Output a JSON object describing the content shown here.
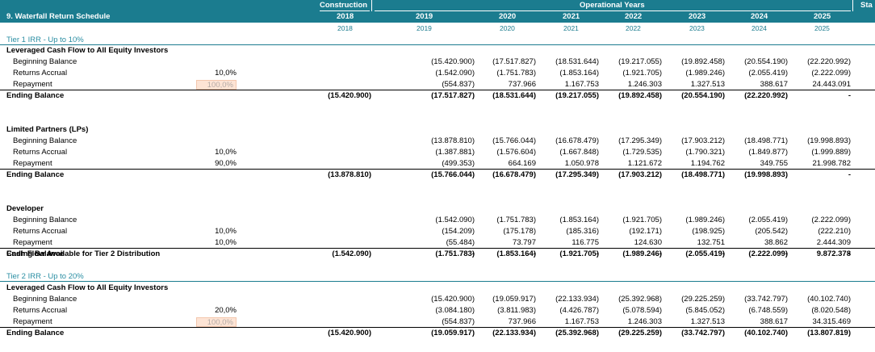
{
  "header": {
    "title": "9. Waterfall Return Schedule",
    "construction_label": "Construction",
    "operational_label": "Operational Years",
    "cut_label": "Sta",
    "years": [
      "2018",
      "2019",
      "2020",
      "2021",
      "2022",
      "2023",
      "2024",
      "2025"
    ],
    "sub_years": [
      "2018",
      "2019",
      "2020",
      "2021",
      "2022",
      "2023",
      "2024",
      "2025"
    ]
  },
  "tier1": {
    "title": "Tier 1 IRR - Up to 10%",
    "groups": [
      {
        "name": "Leveraged Cash Flow to All Equity Investors",
        "rows": [
          {
            "label": "Beginning Balance",
            "pct": "",
            "values": [
              "",
              "(15.420.900)",
              "(17.517.827)",
              "(18.531.644)",
              "(19.217.055)",
              "(19.892.458)",
              "(20.554.190)",
              "(22.220.992)"
            ]
          },
          {
            "label": "Returns Accrual",
            "pct": "10,0%",
            "values": [
              "",
              "(1.542.090)",
              "(1.751.783)",
              "(1.853.164)",
              "(1.921.705)",
              "(1.989.246)",
              "(2.055.419)",
              "(2.222.099)"
            ]
          },
          {
            "label": "Repayment",
            "pct": "100,0%",
            "highlight": true,
            "values": [
              "",
              "(554.837)",
              "737.966",
              "1.167.753",
              "1.246.303",
              "1.327.513",
              "388.617",
              "24.443.091"
            ]
          }
        ],
        "ending": {
          "label": "Ending Balance",
          "values": [
            "(15.420.900)",
            "(17.517.827)",
            "(18.531.644)",
            "(19.217.055)",
            "(19.892.458)",
            "(20.554.190)",
            "(22.220.992)",
            "-"
          ]
        }
      },
      {
        "name": "Limited Partners (LPs)",
        "rows": [
          {
            "label": "Beginning Balance",
            "pct": "",
            "values": [
              "",
              "(13.878.810)",
              "(15.766.044)",
              "(16.678.479)",
              "(17.295.349)",
              "(17.903.212)",
              "(18.498.771)",
              "(19.998.893)"
            ]
          },
          {
            "label": "Returns Accrual",
            "pct": "10,0%",
            "values": [
              "",
              "(1.387.881)",
              "(1.576.604)",
              "(1.667.848)",
              "(1.729.535)",
              "(1.790.321)",
              "(1.849.877)",
              "(1.999.889)"
            ]
          },
          {
            "label": "Repayment",
            "pct": "90,0%",
            "values": [
              "",
              "(499.353)",
              "664.169",
              "1.050.978",
              "1.121.672",
              "1.194.762",
              "349.755",
              "21.998.782"
            ]
          }
        ],
        "ending": {
          "label": "Ending Balance",
          "values": [
            "(13.878.810)",
            "(15.766.044)",
            "(16.678.479)",
            "(17.295.349)",
            "(17.903.212)",
            "(18.498.771)",
            "(19.998.893)",
            "-"
          ]
        }
      },
      {
        "name": "Developer",
        "rows": [
          {
            "label": "Beginning Balance",
            "pct": "",
            "values": [
              "",
              "(1.542.090)",
              "(1.751.783)",
              "(1.853.164)",
              "(1.921.705)",
              "(1.989.246)",
              "(2.055.419)",
              "(2.222.099)"
            ]
          },
          {
            "label": "Returns Accrual",
            "pct": "10,0%",
            "values": [
              "",
              "(154.209)",
              "(175.178)",
              "(185.316)",
              "(192.171)",
              "(198.925)",
              "(205.542)",
              "(222.210)"
            ]
          },
          {
            "label": "Repayment",
            "pct": "10,0%",
            "values": [
              "",
              "(55.484)",
              "73.797",
              "116.775",
              "124.630",
              "132.751",
              "38.862",
              "2.444.309"
            ]
          }
        ],
        "ending": {
          "label": "Ending Balance",
          "values": [
            "(1.542.090)",
            "(1.751.783)",
            "(1.853.164)",
            "(1.921.705)",
            "(1.989.246)",
            "(2.055.419)",
            "(2.222.099)",
            "-"
          ]
        }
      }
    ],
    "cash_available": {
      "label": "Cash Flow Available for Tier 2 Distribution",
      "values": [
        "",
        "-",
        "-",
        "-",
        "-",
        "-",
        "-",
        "9.872.378"
      ]
    }
  },
  "tier2": {
    "title": "Tier 2 IRR - Up to 20%",
    "group": {
      "name": "Leveraged Cash Flow to All Equity Investors",
      "rows": [
        {
          "label": "Beginning Balance",
          "pct": "",
          "values": [
            "",
            "(15.420.900)",
            "(19.059.917)",
            "(22.133.934)",
            "(25.392.968)",
            "(29.225.259)",
            "(33.742.797)",
            "(40.102.740)"
          ]
        },
        {
          "label": "Returns Accrual",
          "pct": "20,0%",
          "values": [
            "",
            "(3.084.180)",
            "(3.811.983)",
            "(4.426.787)",
            "(5.078.594)",
            "(5.845.052)",
            "(6.748.559)",
            "(8.020.548)"
          ]
        },
        {
          "label": "Repayment",
          "pct": "100,0%",
          "highlight": true,
          "values": [
            "",
            "(554.837)",
            "737.966",
            "1.167.753",
            "1.246.303",
            "1.327.513",
            "388.617",
            "34.315.469"
          ]
        }
      ],
      "ending": {
        "label": "Ending Balance",
        "values": [
          "(15.420.900)",
          "(19.059.917)",
          "(22.133.934)",
          "(25.392.968)",
          "(29.225.259)",
          "(33.742.797)",
          "(40.102.740)",
          "(13.807.819)"
        ]
      }
    }
  }
}
